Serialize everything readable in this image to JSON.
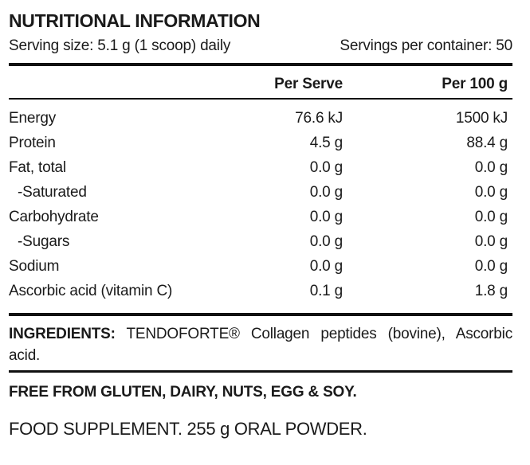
{
  "title": "NUTRITIONAL INFORMATION",
  "serving_info": {
    "serving_size": "Serving size: 5.1 g (1 scoop) daily",
    "servings_per_container": "Servings per container: 50"
  },
  "table": {
    "col_per_serve": "Per Serve",
    "col_per_100g": "Per 100 g",
    "rows": [
      {
        "name": "Energy",
        "per_serve": "76.6 kJ",
        "per_100g": "1500 kJ"
      },
      {
        "name": "Protein",
        "per_serve": "4.5 g",
        "per_100g": "88.4 g"
      },
      {
        "name": "Fat, total",
        "per_serve": "0.0 g",
        "per_100g": "0.0 g"
      },
      {
        "name": "-Saturated",
        "per_serve": "0.0 g",
        "per_100g": "0.0 g"
      },
      {
        "name": "Carbohydrate",
        "per_serve": "0.0 g",
        "per_100g": "0.0 g"
      },
      {
        "name": "-Sugars",
        "per_serve": "0.0 g",
        "per_100g": "0.0 g"
      },
      {
        "name": "Sodium",
        "per_serve": "0.0 g",
        "per_100g": "0.0 g"
      },
      {
        "name": "Ascorbic acid (vitamin C)",
        "per_serve": "0.1 g",
        "per_100g": "1.8 g"
      }
    ]
  },
  "ingredients": {
    "label": "INGREDIENTS:",
    "text": "TENDOFORTE® Collagen peptides (bovine), Ascorbic acid."
  },
  "free_from": "FREE FROM GLUTEN, DAIRY, NUTS, EGG & SOY.",
  "food_supplement": "FOOD SUPPLEMENT. 255 g ORAL POWDER.",
  "colors": {
    "text": "#1a1a1a",
    "rule": "#111111",
    "background": "#ffffff"
  }
}
